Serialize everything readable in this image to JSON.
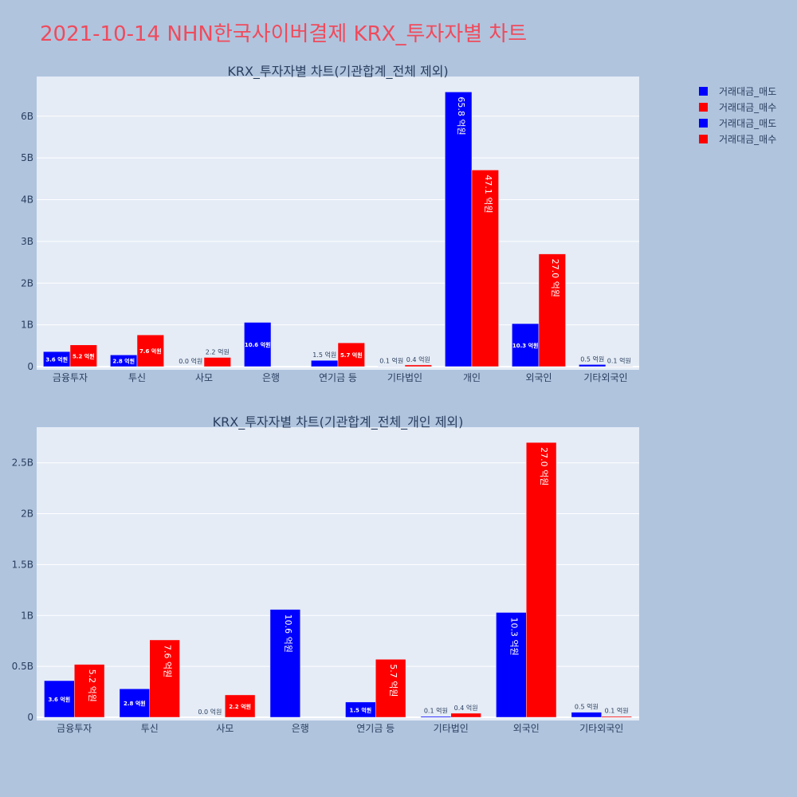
{
  "title": "2021-10-14 NHN한국사이버결제 KRX_투자자별 차트",
  "colors": {
    "background": "#b0c4de",
    "plot_bg": "#e5ecf6",
    "sell": "#0000ff",
    "buy": "#ff0000",
    "title": "#ef4b5c"
  },
  "legend": [
    "거래대금_매도",
    "거래대금_매수",
    "거래대금_매도",
    "거래대금_매수"
  ],
  "chart_data": [
    {
      "type": "bar",
      "title": "KRX_투자자별 차트(기관합계_전체 제외)",
      "categories": [
        "금융투자",
        "투신",
        "사모",
        "은행",
        "연기금 등",
        "기타법인",
        "개인",
        "외국인",
        "기타외국인"
      ],
      "ylim": [
        0,
        6.95
      ],
      "yticks": [
        0,
        1,
        2,
        3,
        4,
        5,
        6
      ],
      "ytick_labels": [
        "0",
        "1B",
        "2B",
        "3B",
        "4B",
        "5B",
        "6B"
      ],
      "series": [
        {
          "name": "거래대금_매도",
          "color": "#0000ff",
          "values": [
            0.36,
            0.28,
            0.0,
            1.06,
            0.15,
            0.01,
            6.58,
            1.03,
            0.05
          ],
          "labels": [
            "3.6 억원",
            "2.8 억원",
            "0.0 억원",
            "10.6 억원",
            "1.5 억원",
            "0.1 억원",
            "65.8 억원",
            "10.3 억원",
            "0.5 억원"
          ]
        },
        {
          "name": "거래대금_매수",
          "color": "#ff0000",
          "values": [
            0.52,
            0.76,
            0.22,
            0.0,
            0.57,
            0.04,
            4.71,
            2.7,
            0.01
          ],
          "labels": [
            "5.2 억원",
            "7.6 억원",
            "2.2 억원",
            "",
            "5.7 억원",
            "0.4 억원",
            "47.1 억원",
            "27.0 억원",
            "0.1 억원"
          ]
        }
      ],
      "legend_position": "top-right",
      "grid": true
    },
    {
      "type": "bar",
      "title": "KRX_투자자별 차트(기관합계_전체_개인 제외)",
      "categories": [
        "금융투자",
        "투신",
        "사모",
        "은행",
        "연기금 등",
        "기타법인",
        "외국인",
        "기타외국인"
      ],
      "ylim": [
        0,
        2.85
      ],
      "yticks": [
        0,
        0.5,
        1,
        1.5,
        2,
        2.5
      ],
      "ytick_labels": [
        "0",
        "0.5B",
        "1B",
        "1.5B",
        "2B",
        "2.5B"
      ],
      "series": [
        {
          "name": "거래대금_매도",
          "color": "#0000ff",
          "values": [
            0.36,
            0.28,
            0.0,
            1.06,
            0.15,
            0.01,
            1.03,
            0.05
          ],
          "labels": [
            "3.6 억원",
            "2.8 억원",
            "0.0 억원",
            "10.6 억원",
            "1.5 억원",
            "0.1 억원",
            "10.3 억원",
            "0.5 억원"
          ]
        },
        {
          "name": "거래대금_매수",
          "color": "#ff0000",
          "values": [
            0.52,
            0.76,
            0.22,
            0.0,
            0.57,
            0.04,
            2.7,
            0.01
          ],
          "labels": [
            "5.2 억원",
            "7.6 억원",
            "2.2 억원",
            "",
            "5.7 억원",
            "0.4 억원",
            "27.0 억원",
            "0.1 억원"
          ]
        }
      ],
      "grid": true
    }
  ]
}
